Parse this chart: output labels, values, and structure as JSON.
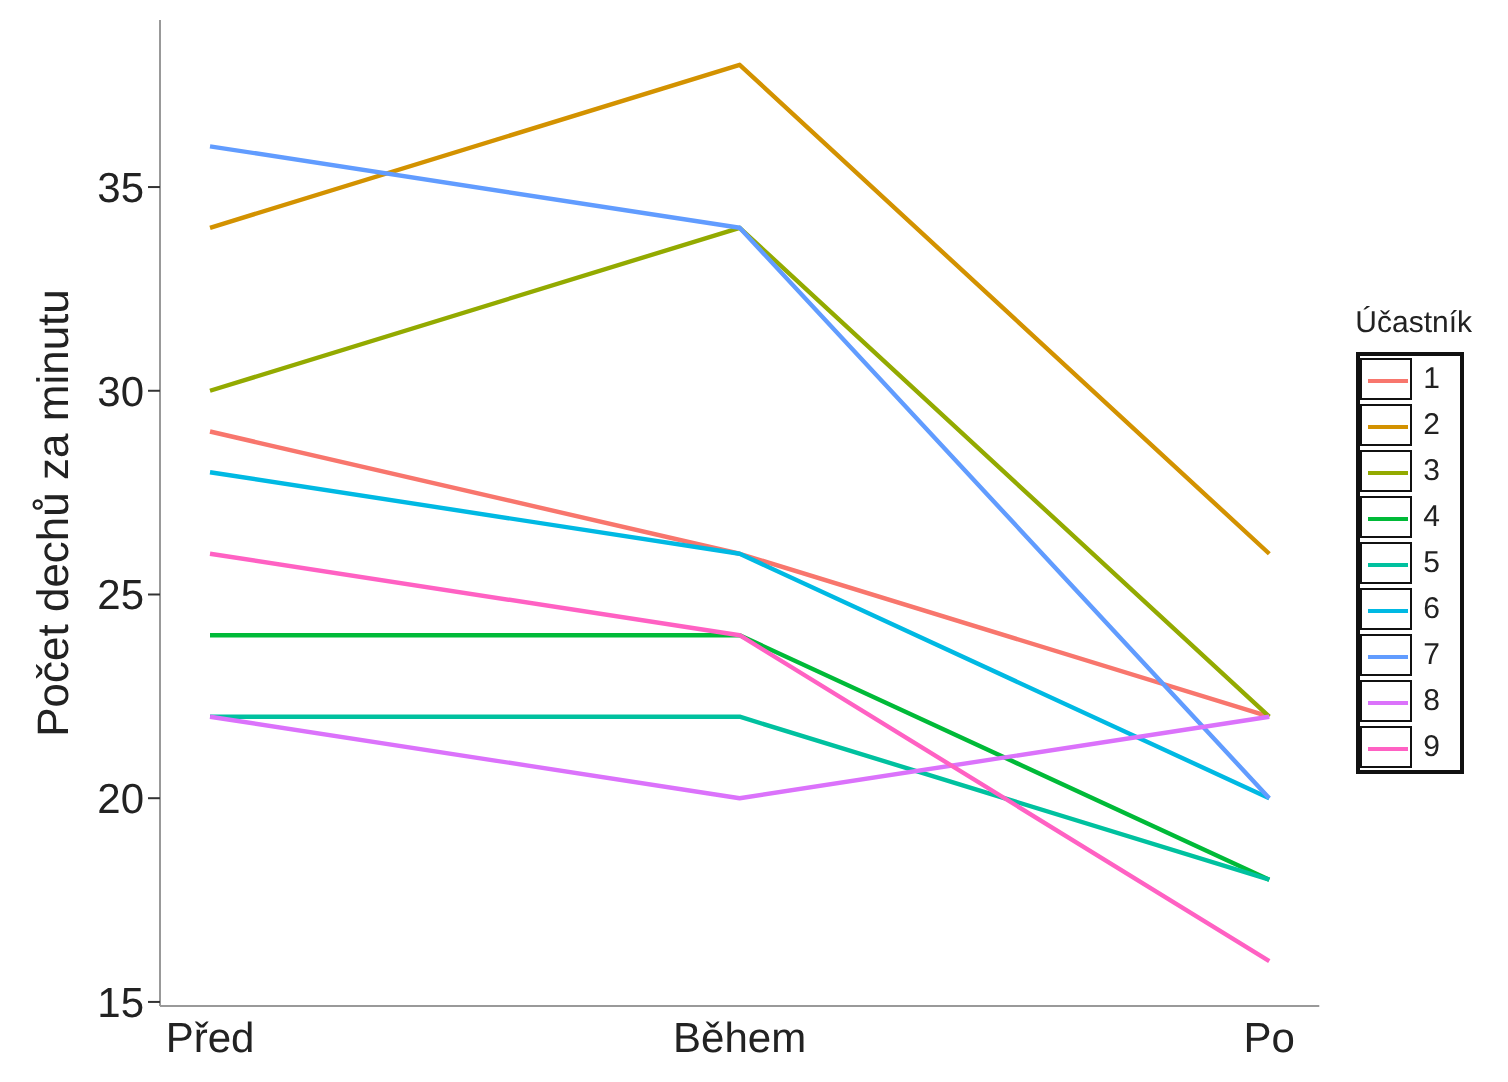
{
  "chart_data": {
    "type": "line",
    "ylabel": "Počet dechů za minutu",
    "legend_title": "Účastník",
    "categories": [
      "Před",
      "Během",
      "Po"
    ],
    "ylim": [
      14.9,
      39.1
    ],
    "yticks": [
      15,
      20,
      25,
      30,
      35
    ],
    "grid": false,
    "legend": "right",
    "marker": "none",
    "line_style": "solid",
    "series": [
      {
        "name": "1",
        "color": "#f8766d",
        "values": [
          29,
          26,
          22
        ]
      },
      {
        "name": "2",
        "color": "#d39200",
        "values": [
          34,
          38,
          26
        ]
      },
      {
        "name": "3",
        "color": "#93aa00",
        "values": [
          30,
          34,
          22
        ]
      },
      {
        "name": "4",
        "color": "#00ba38",
        "values": [
          24,
          24,
          18
        ]
      },
      {
        "name": "5",
        "color": "#00c19f",
        "values": [
          22,
          22,
          18
        ]
      },
      {
        "name": "6",
        "color": "#00b9e3",
        "values": [
          28,
          26,
          20
        ]
      },
      {
        "name": "7",
        "color": "#619cff",
        "values": [
          36,
          34,
          20
        ]
      },
      {
        "name": "8",
        "color": "#db72fb",
        "values": [
          22,
          20,
          22
        ]
      },
      {
        "name": "9",
        "color": "#ff61c3",
        "values": [
          26,
          24,
          16
        ]
      }
    ]
  }
}
